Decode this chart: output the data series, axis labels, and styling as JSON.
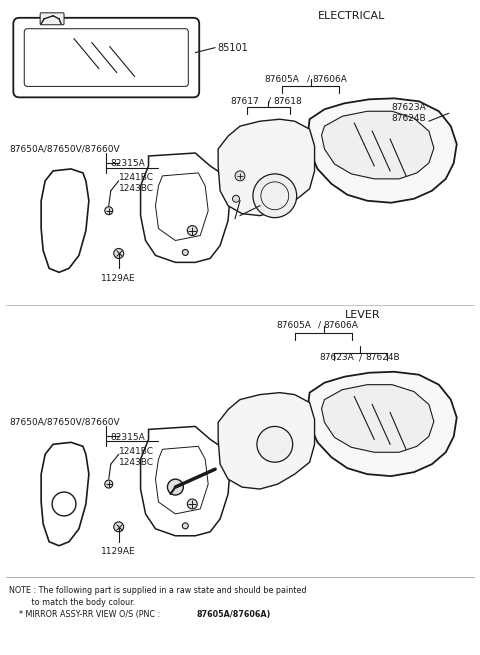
{
  "bg_color": "#ffffff",
  "line_color": "#1a1a1a",
  "text_color": "#1a1a1a",
  "electrical_label": "ELECTRICAL",
  "lever_label": "LEVER",
  "part_85101": "85101",
  "part_87605A_top": "87605A",
  "part_87606A_top": "87606A",
  "part_87617": "87617",
  "part_87618": "87618",
  "part_87623A_top": "87623A",
  "part_87624B_top": "87624B",
  "part_87650_top": "87650A/87650V/87660V",
  "part_82315A_top": "82315A",
  "part_1241BC_top": "1241BC",
  "part_1243BC_top": "1243BC",
  "part_1129AE_top": "1129AE",
  "part_87605A_bot": "87605A",
  "part_87606A_bot": "87606A",
  "part_87623A_bot": "87623A",
  "part_87624B_bot": "87624B",
  "part_87650_bot": "87650A/87650V/87660V",
  "part_82315A_bot": "82315A",
  "part_1241BC_bot": "1241BC",
  "part_1243BC_bot": "1243BC",
  "part_1129AE_bot": "1129AE",
  "note1": "NOTE : The following part is supplied in a raw state and should be painted",
  "note2": "         to match the body colour.",
  "note3_normal": "    * MIRROR ASSY-RR VIEW O/S (PNC : ",
  "note3_bold": "87605A/87606A)"
}
